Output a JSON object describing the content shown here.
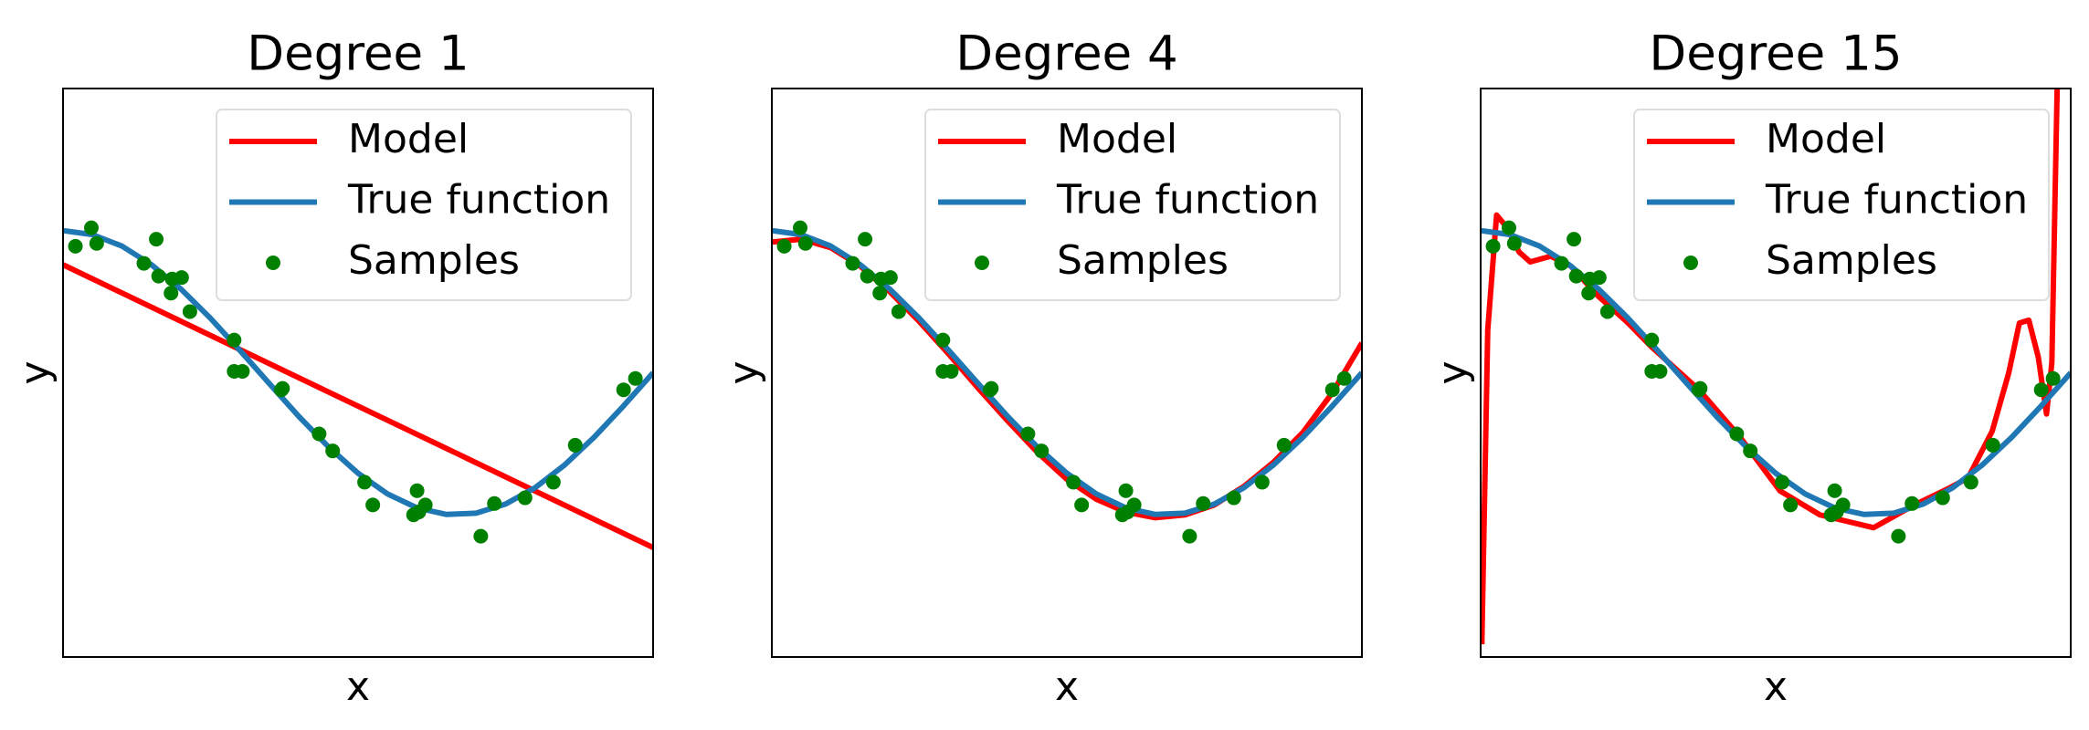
{
  "chart_data": [
    {
      "type": "line",
      "title": "Degree 1",
      "xlabel": "x",
      "ylabel": "y",
      "xlim": [
        0,
        1
      ],
      "ylim": [
        -2,
        2
      ],
      "legend": "upper right",
      "series": [
        {
          "name": "Model",
          "type": "line",
          "color": "#ff0000",
          "x": [
            0,
            1
          ],
          "values": [
            0.76,
            -1.23
          ]
        },
        {
          "name": "True function",
          "type": "line",
          "color": "#1f77b4",
          "x": [
            0,
            0.05,
            0.1,
            0.15,
            0.2,
            0.25,
            0.3,
            0.35,
            0.4,
            0.45,
            0.5,
            0.55,
            0.6,
            0.65,
            0.7,
            0.75,
            0.8,
            0.85,
            0.9,
            0.95,
            1
          ],
          "values": [
            1,
            0.972,
            0.891,
            0.76,
            0.588,
            0.383,
            0.156,
            -0.078,
            -0.309,
            -0.522,
            -0.707,
            -0.853,
            -0.951,
            -0.997,
            -0.988,
            -0.924,
            -0.809,
            -0.649,
            -0.454,
            -0.233,
            0
          ]
        },
        {
          "name": "Samples",
          "type": "scatter",
          "color": "#008000",
          "x": [
            0.021,
            0.048,
            0.057,
            0.137,
            0.158,
            0.162,
            0.183,
            0.185,
            0.201,
            0.215,
            0.29,
            0.29,
            0.304,
            0.37,
            0.372,
            0.434,
            0.457,
            0.511,
            0.525,
            0.594,
            0.6,
            0.603,
            0.614,
            0.708,
            0.731,
            0.783,
            0.831,
            0.868,
            0.95,
            0.97
          ],
          "values": [
            0.89,
            1.02,
            0.91,
            0.77,
            0.94,
            0.68,
            0.56,
            0.66,
            0.67,
            0.43,
            0.23,
            0.01,
            0.01,
            -0.12,
            -0.11,
            -0.43,
            -0.55,
            -0.77,
            -0.93,
            -1.0,
            -0.83,
            -0.98,
            -0.93,
            -1.15,
            -0.92,
            -0.88,
            -0.77,
            -0.51,
            -0.12,
            -0.04
          ]
        }
      ]
    },
    {
      "type": "line",
      "title": "Degree 4",
      "xlabel": "x",
      "ylabel": "y",
      "xlim": [
        0,
        1
      ],
      "ylim": [
        -2,
        2
      ],
      "legend": "upper right",
      "series": [
        {
          "name": "Model",
          "type": "line",
          "color": "#ff0000",
          "x": [
            0,
            0.05,
            0.1,
            0.15,
            0.2,
            0.25,
            0.3,
            0.35,
            0.4,
            0.45,
            0.5,
            0.55,
            0.6,
            0.65,
            0.7,
            0.75,
            0.8,
            0.85,
            0.9,
            0.95,
            1
          ],
          "values": [
            0.92,
            0.94,
            0.88,
            0.75,
            0.57,
            0.36,
            0.13,
            -0.11,
            -0.34,
            -0.56,
            -0.75,
            -0.89,
            -0.98,
            -1.02,
            -1.0,
            -0.93,
            -0.8,
            -0.63,
            -0.42,
            -0.14,
            0.21
          ]
        },
        {
          "name": "True function",
          "type": "line",
          "color": "#1f77b4",
          "x": [
            0,
            0.05,
            0.1,
            0.15,
            0.2,
            0.25,
            0.3,
            0.35,
            0.4,
            0.45,
            0.5,
            0.55,
            0.6,
            0.65,
            0.7,
            0.75,
            0.8,
            0.85,
            0.9,
            0.95,
            1
          ],
          "values": [
            1,
            0.972,
            0.891,
            0.76,
            0.588,
            0.383,
            0.156,
            -0.078,
            -0.309,
            -0.522,
            -0.707,
            -0.853,
            -0.951,
            -0.997,
            -0.988,
            -0.924,
            -0.809,
            -0.649,
            -0.454,
            -0.233,
            0
          ]
        },
        {
          "name": "Samples",
          "type": "scatter",
          "color": "#008000",
          "x": [
            0.021,
            0.048,
            0.057,
            0.137,
            0.158,
            0.162,
            0.183,
            0.185,
            0.201,
            0.215,
            0.29,
            0.29,
            0.304,
            0.37,
            0.372,
            0.434,
            0.457,
            0.511,
            0.525,
            0.594,
            0.6,
            0.603,
            0.614,
            0.708,
            0.731,
            0.783,
            0.831,
            0.868,
            0.95,
            0.97
          ],
          "values": [
            0.89,
            1.02,
            0.91,
            0.77,
            0.94,
            0.68,
            0.56,
            0.66,
            0.67,
            0.43,
            0.23,
            0.01,
            0.01,
            -0.12,
            -0.11,
            -0.43,
            -0.55,
            -0.77,
            -0.93,
            -1.0,
            -0.83,
            -0.98,
            -0.93,
            -1.15,
            -0.92,
            -0.88,
            -0.77,
            -0.51,
            -0.12,
            -0.04
          ]
        }
      ]
    },
    {
      "type": "line",
      "title": "Degree 15",
      "xlabel": "x",
      "ylabel": "y",
      "xlim": [
        0,
        1
      ],
      "ylim": [
        -2,
        2
      ],
      "legend": "upper right",
      "series": [
        {
          "name": "Model",
          "type": "line",
          "color": "#ff0000",
          "x": [
            0.002,
            0.012,
            0.027,
            0.045,
            0.065,
            0.084,
            0.119,
            0.153,
            0.199,
            0.25,
            0.29,
            0.37,
            0.439,
            0.507,
            0.575,
            0.666,
            0.735,
            0.79,
            0.826,
            0.867,
            0.895,
            0.913,
            0.929,
            0.945,
            0.959,
            0.968,
            0.977,
            0.985
          ],
          "values": [
            -1.91,
            0.3,
            1.11,
            1.02,
            0.85,
            0.78,
            0.82,
            0.75,
            0.54,
            0.35,
            0.18,
            -0.12,
            -0.45,
            -0.83,
            -1.0,
            -1.09,
            -0.93,
            -0.82,
            -0.74,
            -0.41,
            0.0,
            0.35,
            0.37,
            0.11,
            -0.29,
            0.07,
            2.0,
            3.0
          ]
        },
        {
          "name": "True function",
          "type": "line",
          "color": "#1f77b4",
          "x": [
            0,
            0.05,
            0.1,
            0.15,
            0.2,
            0.25,
            0.3,
            0.35,
            0.4,
            0.45,
            0.5,
            0.55,
            0.6,
            0.65,
            0.7,
            0.75,
            0.8,
            0.85,
            0.9,
            0.95,
            1
          ],
          "values": [
            1,
            0.972,
            0.891,
            0.76,
            0.588,
            0.383,
            0.156,
            -0.078,
            -0.309,
            -0.522,
            -0.707,
            -0.853,
            -0.951,
            -0.997,
            -0.988,
            -0.924,
            -0.809,
            -0.649,
            -0.454,
            -0.233,
            0
          ]
        },
        {
          "name": "Samples",
          "type": "scatter",
          "color": "#008000",
          "x": [
            0.021,
            0.048,
            0.057,
            0.137,
            0.158,
            0.162,
            0.183,
            0.185,
            0.201,
            0.215,
            0.29,
            0.29,
            0.304,
            0.37,
            0.372,
            0.434,
            0.457,
            0.511,
            0.525,
            0.594,
            0.6,
            0.603,
            0.614,
            0.708,
            0.731,
            0.783,
            0.831,
            0.868,
            0.95,
            0.97
          ],
          "values": [
            0.89,
            1.02,
            0.91,
            0.77,
            0.94,
            0.68,
            0.56,
            0.66,
            0.67,
            0.43,
            0.23,
            0.01,
            0.01,
            -0.12,
            -0.11,
            -0.43,
            -0.55,
            -0.77,
            -0.93,
            -1.0,
            -0.83,
            -0.98,
            -0.93,
            -1.15,
            -0.92,
            -0.88,
            -0.77,
            -0.51,
            -0.12,
            -0.04
          ]
        }
      ]
    }
  ]
}
